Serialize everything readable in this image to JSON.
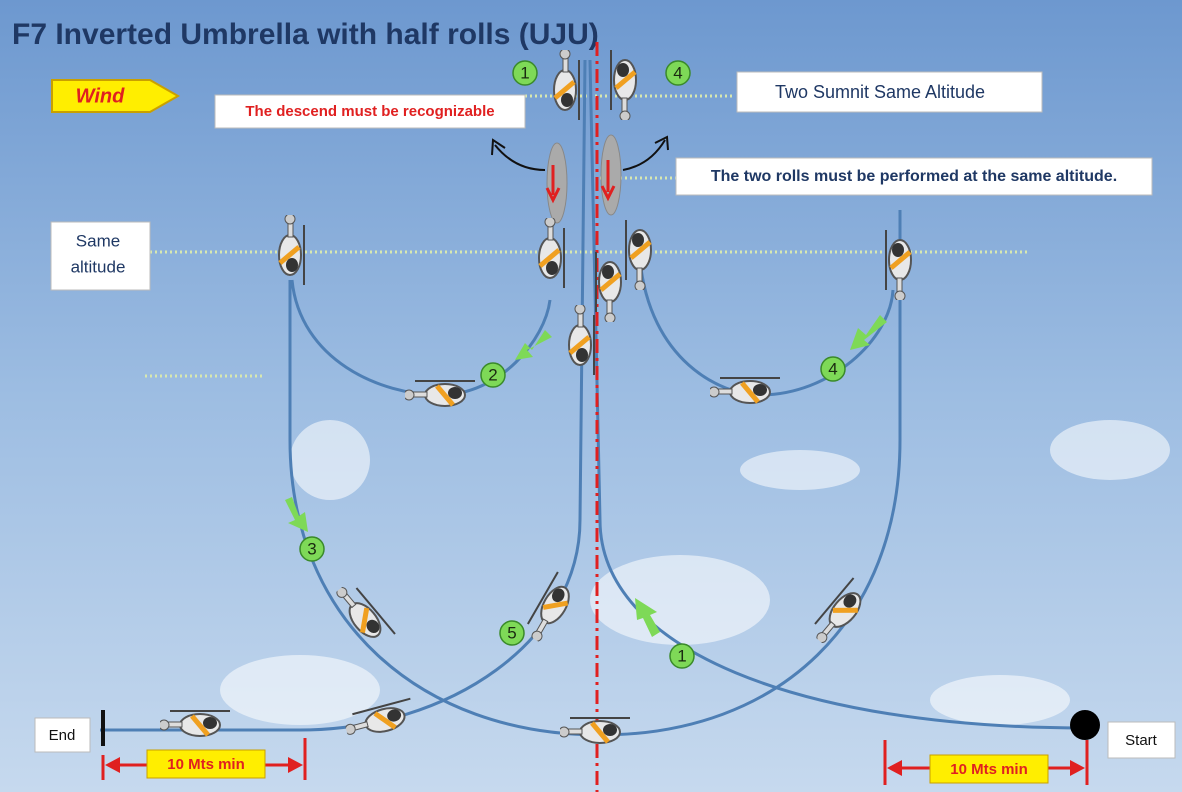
{
  "title": "F7 Inverted Umbrella with half rolls (UJU)",
  "wind": "Wind",
  "notes": {
    "descend": "The descend must be recognizable",
    "summit": "Two Sumnit Same Altitude",
    "rolls": "The two rolls must be performed at the same altitude.",
    "same_altitude": [
      "Same",
      "altitude"
    ]
  },
  "end": "End",
  "start": "Start",
  "distance": [
    "10 Mts min",
    "10 Mts min"
  ],
  "markers": [
    "1",
    "4",
    "2",
    "4",
    "3",
    "5",
    "1"
  ]
}
